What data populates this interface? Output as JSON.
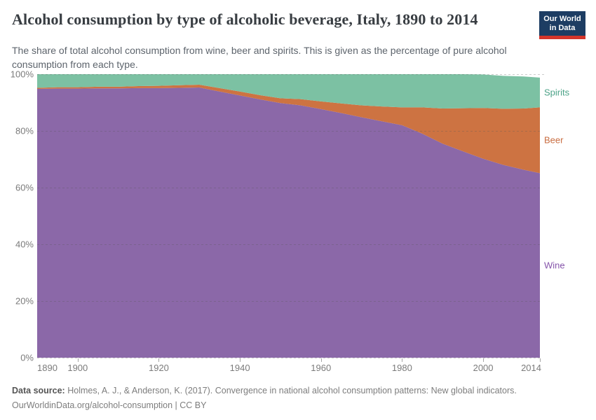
{
  "header": {
    "title": "Alcohol consumption by type of alcoholic beverage, Italy, 1890 to 2014",
    "subtitle": "The share of total alcohol consumption from wine, beer and spirits. This is given as the percentage of pure alcohol consumption from each type.",
    "logo": {
      "line1": "Our World",
      "line2": "in Data",
      "background_color": "#1d3d63",
      "accent_color": "#d4352b",
      "text_color": "#ffffff"
    }
  },
  "chart_data": {
    "type": "area",
    "stacked": true,
    "title": "Alcohol consumption by type of alcoholic beverage, Italy, 1890 to 2014",
    "xlabel": "",
    "ylabel": "",
    "xlim": [
      1890,
      2014
    ],
    "ylim": [
      0,
      100
    ],
    "grid": "dashed-horizontal",
    "legend": "inline-right-labels",
    "x": [
      1890,
      1895,
      1900,
      1905,
      1910,
      1915,
      1920,
      1925,
      1930,
      1935,
      1940,
      1945,
      1950,
      1955,
      1960,
      1965,
      1970,
      1975,
      1980,
      1985,
      1990,
      1995,
      2000,
      2005,
      2010,
      2014
    ],
    "series": [
      {
        "name": "Wine",
        "color": "#8b68a8",
        "label_color": "#8655ab",
        "values": [
          94.8,
          94.9,
          94.9,
          95.0,
          95.0,
          95.1,
          95.1,
          95.2,
          95.3,
          93.9,
          92.5,
          91.1,
          89.8,
          89.0,
          87.7,
          86.3,
          84.8,
          83.4,
          82.0,
          79.0,
          75.5,
          72.8,
          70.2,
          68.0,
          66.3,
          65.1
        ]
      },
      {
        "name": "Beer",
        "color": "#cd7342",
        "label_color": "#c96e42",
        "values": [
          0.4,
          0.5,
          0.5,
          0.6,
          0.6,
          0.7,
          0.8,
          0.9,
          1.0,
          1.2,
          1.4,
          1.5,
          1.7,
          2.2,
          2.7,
          3.4,
          4.2,
          5.2,
          6.3,
          9.3,
          12.4,
          15.2,
          17.9,
          19.8,
          21.6,
          23.2
        ]
      },
      {
        "name": "Spirits",
        "color": "#7cc1a3",
        "label_color": "#4ba287",
        "values": [
          4.8,
          4.6,
          4.6,
          4.4,
          4.4,
          4.2,
          4.1,
          3.9,
          3.7,
          4.9,
          6.1,
          7.4,
          8.5,
          8.8,
          9.6,
          10.3,
          11.0,
          11.4,
          11.7,
          11.7,
          12.1,
          12.0,
          11.8,
          11.6,
          11.3,
          10.5
        ]
      }
    ],
    "x_ticks": [
      1890,
      1900,
      1920,
      1940,
      1960,
      1980,
      2000,
      2014
    ],
    "y_ticks": [
      0,
      20,
      40,
      60,
      80,
      100
    ],
    "y_tick_suffix": "%",
    "gridline_color": "rgba(85,85,85,0.30)",
    "tick_mark_color": "#a5a5a5"
  },
  "footer": {
    "source_label": "Data source:",
    "source_text": "Holmes, A. J., & Anderson, K. (2017). Convergence in national alcohol consumption patterns: New global indicators.",
    "license_line": "OurWorldinData.org/alcohol-consumption | CC BY"
  }
}
